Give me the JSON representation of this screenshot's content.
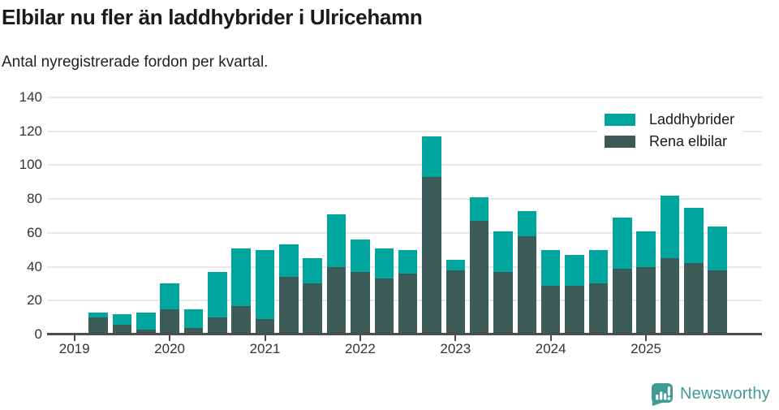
{
  "header": {
    "title": "Elbilar nu fler än laddhybrider i Ulricehamn",
    "subtitle": "Antal nyregistrerade fordon per kvartal."
  },
  "legend": [
    {
      "label": "Laddhybrider",
      "color": "#00a59d"
    },
    {
      "label": "Rena elbilar",
      "color": "#3c5b57"
    }
  ],
  "footer": {
    "brand": "Newsworthy",
    "brand_color": "#3f9b94",
    "logo_icon": "newsworthy-speech-bubble-bar-chart-icon"
  },
  "chart_data": {
    "type": "bar",
    "stacked": true,
    "title": "Elbilar nu fler än laddhybrider i Ulricehamn",
    "subtitle": "Antal nyregistrerade fordon per kvartal.",
    "grid": "horizontal",
    "legend_position": "top-right",
    "ylim": [
      0,
      140
    ],
    "y_ticks": [
      0,
      20,
      40,
      60,
      80,
      100,
      120,
      140
    ],
    "x_tick_labels": [
      "2019",
      "2020",
      "2021",
      "2022",
      "2023",
      "2024",
      "2025"
    ],
    "categories": [
      "2019 Q2",
      "2019 Q3",
      "2019 Q4",
      "2020 Q1",
      "2020 Q2",
      "2020 Q3",
      "2020 Q4",
      "2021 Q1",
      "2021 Q2",
      "2021 Q3",
      "2021 Q4",
      "2022 Q1",
      "2022 Q2",
      "2022 Q3",
      "2022 Q4",
      "2023 Q1",
      "2023 Q2",
      "2023 Q3",
      "2023 Q4",
      "2024 Q1",
      "2024 Q2",
      "2024 Q3",
      "2024 Q4",
      "2025 Q1",
      "2025 Q2",
      "2025 Q3",
      "2025 Q4"
    ],
    "series": [
      {
        "name": "Rena elbilar",
        "color": "#3c5b57",
        "values": [
          10,
          6,
          3,
          15,
          4,
          10,
          17,
          9,
          34,
          30,
          40,
          37,
          33,
          36,
          93,
          38,
          67,
          37,
          58,
          29,
          29,
          30,
          39,
          40,
          45,
          42,
          38
        ]
      },
      {
        "name": "Laddhybrider",
        "color": "#00a59d",
        "values": [
          3,
          6,
          10,
          15,
          11,
          27,
          34,
          41,
          19,
          15,
          31,
          19,
          18,
          14,
          24,
          6,
          14,
          24,
          15,
          21,
          18,
          20,
          30,
          21,
          37,
          33,
          26
        ]
      }
    ],
    "totals": [
      13,
      12,
      13,
      30,
      15,
      37,
      51,
      50,
      53,
      45,
      71,
      56,
      51,
      50,
      117,
      44,
      81,
      61,
      73,
      50,
      47,
      50,
      69,
      61,
      82,
      75,
      64
    ]
  }
}
